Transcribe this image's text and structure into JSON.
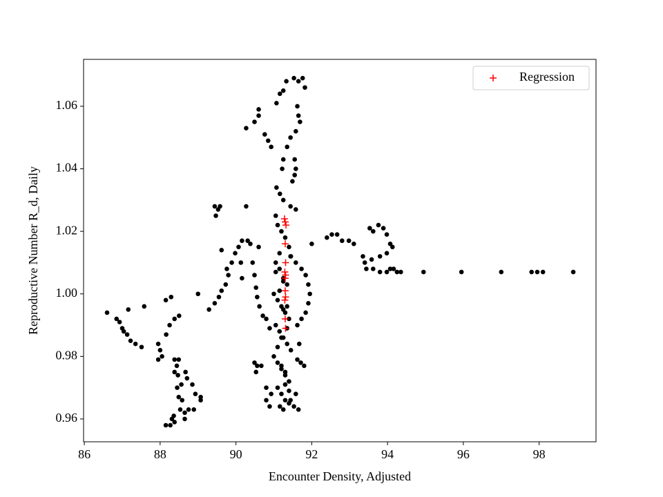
{
  "chart_data": {
    "type": "scatter",
    "x_label": "Encounter Density, Adjusted",
    "y_label": "Reproductive Number R_d, Daily",
    "xlim": [
      85.98,
      99.5
    ],
    "ylim": [
      0.9527,
      1.075
    ],
    "xticks": [
      86,
      88,
      90,
      92,
      94,
      96,
      98
    ],
    "yticks": [
      0.96,
      0.98,
      {
        "value": 1,
        "label": "1.00"
      },
      1.02,
      1.04,
      1.06
    ],
    "legend": "upper right",
    "series": [
      {
        "color": "#000000",
        "marker": "o",
        "x": [
          86.6,
          86.85,
          86.93,
          87.0,
          87.04,
          87.13,
          87.22,
          87.35,
          87.51,
          87.16,
          87.58,
          87.95,
          88.0,
          88.05,
          87.95,
          88.16,
          88.25,
          88.38,
          88.5,
          88.15,
          88.29,
          88.38,
          88.49,
          88.44,
          88.47,
          88.38,
          88.45,
          88.56,
          88.49,
          88.58,
          88.53,
          88.36,
          88.31,
          88.38,
          88.27,
          88.15,
          88.65,
          88.65,
          88.67,
          88.71,
          88.85,
          88.93,
          89.07,
          89.07,
          88.89,
          88.75,
          89.0,
          89.29,
          89.44,
          89.55,
          89.62,
          89.73,
          89.8,
          89.76,
          89.89,
          89.98,
          90.07,
          90.16,
          90.31,
          90.38,
          89.62,
          89.44,
          89.53,
          89.47,
          89.58,
          90.27,
          90.16,
          90.13,
          90.6,
          90.27,
          90.49,
          90.6,
          90.6,
          90.76,
          90.85,
          90.93,
          91.07,
          91.16,
          91.25,
          91.33,
          91.53,
          91.65,
          91.76,
          91.82,
          91.62,
          91.65,
          91.69,
          91.58,
          91.44,
          91.35,
          91.25,
          91.22,
          91.55,
          91.58,
          91.55,
          91.49,
          91.07,
          91.16,
          91.25,
          91.44,
          91.58,
          91.44,
          91.58,
          91.73,
          91.84,
          91.91,
          91.95,
          91.91,
          91.84,
          91.73,
          91.62,
          90.44,
          90.49,
          90.53,
          90.56,
          90.62,
          90.71,
          90.8,
          90.89,
          90.49,
          90.56,
          90.67,
          90.53,
          90.8,
          90.93,
          90.8,
          90.89,
          91.16,
          91.25,
          91.44,
          91.53,
          91.65,
          91.58,
          91.62,
          91.71,
          91.8,
          91.67,
          91.05,
          91.1,
          91.2,
          91.3,
          91.4,
          91.45,
          91.05,
          91.15,
          91.25,
          91.35,
          91.0,
          91.1,
          91.2,
          91.3,
          91.4,
          91.05,
          91.15,
          91.25,
          91.35,
          91.45,
          91.0,
          91.1,
          91.2,
          91.3,
          91.4,
          91.1,
          91.2,
          91.3,
          91.4,
          91.05,
          91.15,
          91.25,
          91.35,
          91.1,
          91.2,
          91.3,
          91.4,
          91.15,
          91.25,
          91.35,
          91.2,
          91.3,
          92.0,
          92.4,
          92.53,
          92.67,
          92.8,
          92.98,
          93.11,
          93.53,
          93.62,
          93.76,
          93.89,
          93.98,
          94.07,
          94.13,
          93.98,
          93.8,
          93.58,
          93.35,
          93.4,
          93.44,
          93.62,
          93.8,
          93.98,
          94.07,
          94.16,
          94.25,
          94.35,
          94.95,
          95.95,
          97.0,
          97.8,
          97.95,
          98.1,
          98.9
        ],
        "values": [
          0.994,
          0.992,
          0.991,
          0.989,
          0.988,
          0.987,
          0.985,
          0.984,
          0.983,
          0.995,
          0.996,
          0.984,
          0.982,
          0.98,
          0.979,
          0.987,
          0.99,
          0.992,
          0.993,
          0.998,
          0.999,
          0.979,
          0.979,
          0.977,
          0.974,
          0.975,
          0.97,
          0.971,
          0.967,
          0.966,
          0.963,
          0.961,
          0.96,
          0.959,
          0.958,
          0.958,
          0.962,
          0.96,
          0.975,
          0.973,
          0.971,
          0.968,
          0.967,
          0.966,
          0.963,
          0.963,
          1.0,
          0.995,
          0.997,
          0.999,
          1.001,
          1.003,
          1.006,
          1.008,
          1.01,
          1.013,
          1.015,
          1.017,
          1.017,
          1.016,
          1.014,
          1.028,
          1.027,
          1.025,
          1.028,
          1.028,
          1.005,
          1.01,
          1.015,
          1.053,
          1.055,
          1.059,
          1.057,
          1.051,
          1.049,
          1.047,
          1.061,
          1.064,
          1.065,
          1.068,
          1.069,
          1.068,
          1.069,
          1.066,
          1.06,
          1.057,
          1.055,
          1.052,
          1.05,
          1.047,
          1.043,
          1.04,
          1.043,
          1.04,
          1.038,
          1.036,
          1.034,
          1.032,
          1.03,
          1.028,
          1.027,
          1.012,
          1.01,
          1.008,
          1.006,
          1.003,
          1.0,
          0.997,
          0.994,
          0.992,
          0.99,
          1.01,
          1.006,
          1.002,
          0.999,
          0.996,
          0.993,
          0.992,
          0.989,
          0.978,
          0.977,
          0.977,
          0.975,
          0.97,
          0.968,
          0.966,
          0.964,
          0.964,
          0.963,
          0.966,
          0.964,
          0.963,
          0.968,
          0.979,
          0.978,
          0.977,
          0.984,
          1.025,
          1.022,
          1.02,
          1.018,
          1.015,
          1.012,
          1.01,
          1.008,
          1.005,
          1.003,
          1.0,
          0.998,
          0.996,
          0.994,
          0.992,
          0.99,
          0.988,
          0.986,
          0.984,
          0.982,
          0.98,
          0.978,
          0.976,
          0.974,
          0.972,
          0.97,
          0.968,
          0.966,
          0.965,
          1.007,
          1.001,
          0.995,
          0.989,
          0.983,
          0.977,
          0.971,
          0.969,
          1.013,
          1.004,
          0.996,
          0.986,
          0.975,
          1.016,
          1.018,
          1.019,
          1.019,
          1.017,
          1.017,
          1.016,
          1.021,
          1.02,
          1.022,
          1.021,
          1.019,
          1.016,
          1.015,
          1.013,
          1.012,
          1.011,
          1.012,
          1.01,
          1.008,
          1.008,
          1.007,
          1.007,
          1.008,
          1.008,
          1.007,
          1.007,
          1.007,
          1.007,
          1.007,
          1.007,
          1.007,
          1.007,
          1.007
        ]
      },
      {
        "name": "Regression",
        "color": "#ff0000",
        "marker": "+",
        "x": [
          91.3,
          91.32,
          91.28,
          91.3,
          91.31,
          91.29,
          91.3,
          91.31,
          91.3,
          91.31,
          91.29,
          91.3,
          91.31
        ],
        "values": [
          1.023,
          1.022,
          1.024,
          1.016,
          1.01,
          1.007,
          1.005,
          1.006,
          1.001,
          0.999,
          0.998,
          0.992,
          0.989
        ]
      }
    ]
  }
}
